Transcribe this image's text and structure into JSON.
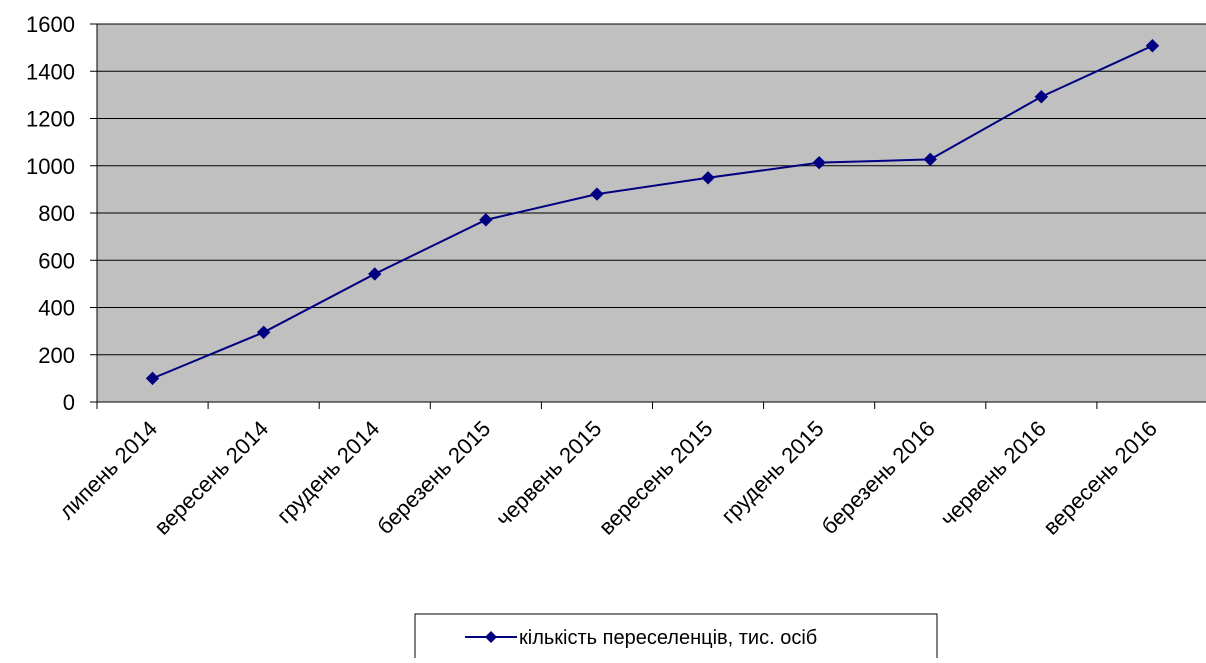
{
  "chart_data": {
    "type": "line",
    "categories": [
      "липень 2014",
      "вересень 2014",
      "грудень 2014",
      "березень 2015",
      "червень 2015",
      "вересень 2015",
      "грудень 2015",
      "березень 2016",
      "червень 2016",
      "вересень 2016"
    ],
    "series": [
      {
        "name": "кількість переселенців, тис. осіб",
        "values": [
          100,
          295,
          542,
          771,
          880,
          949,
          1013,
          1027,
          1292,
          1508
        ],
        "color": "#000080",
        "marker": "diamond"
      }
    ],
    "ylim": [
      0,
      1600
    ],
    "yticks": [
      "0",
      "200",
      "400",
      "600",
      "800",
      "1000",
      "1200",
      "1400",
      "1600"
    ],
    "grid": true,
    "plot_background": "#c0c0c0",
    "legend_position": "bottom-center"
  }
}
